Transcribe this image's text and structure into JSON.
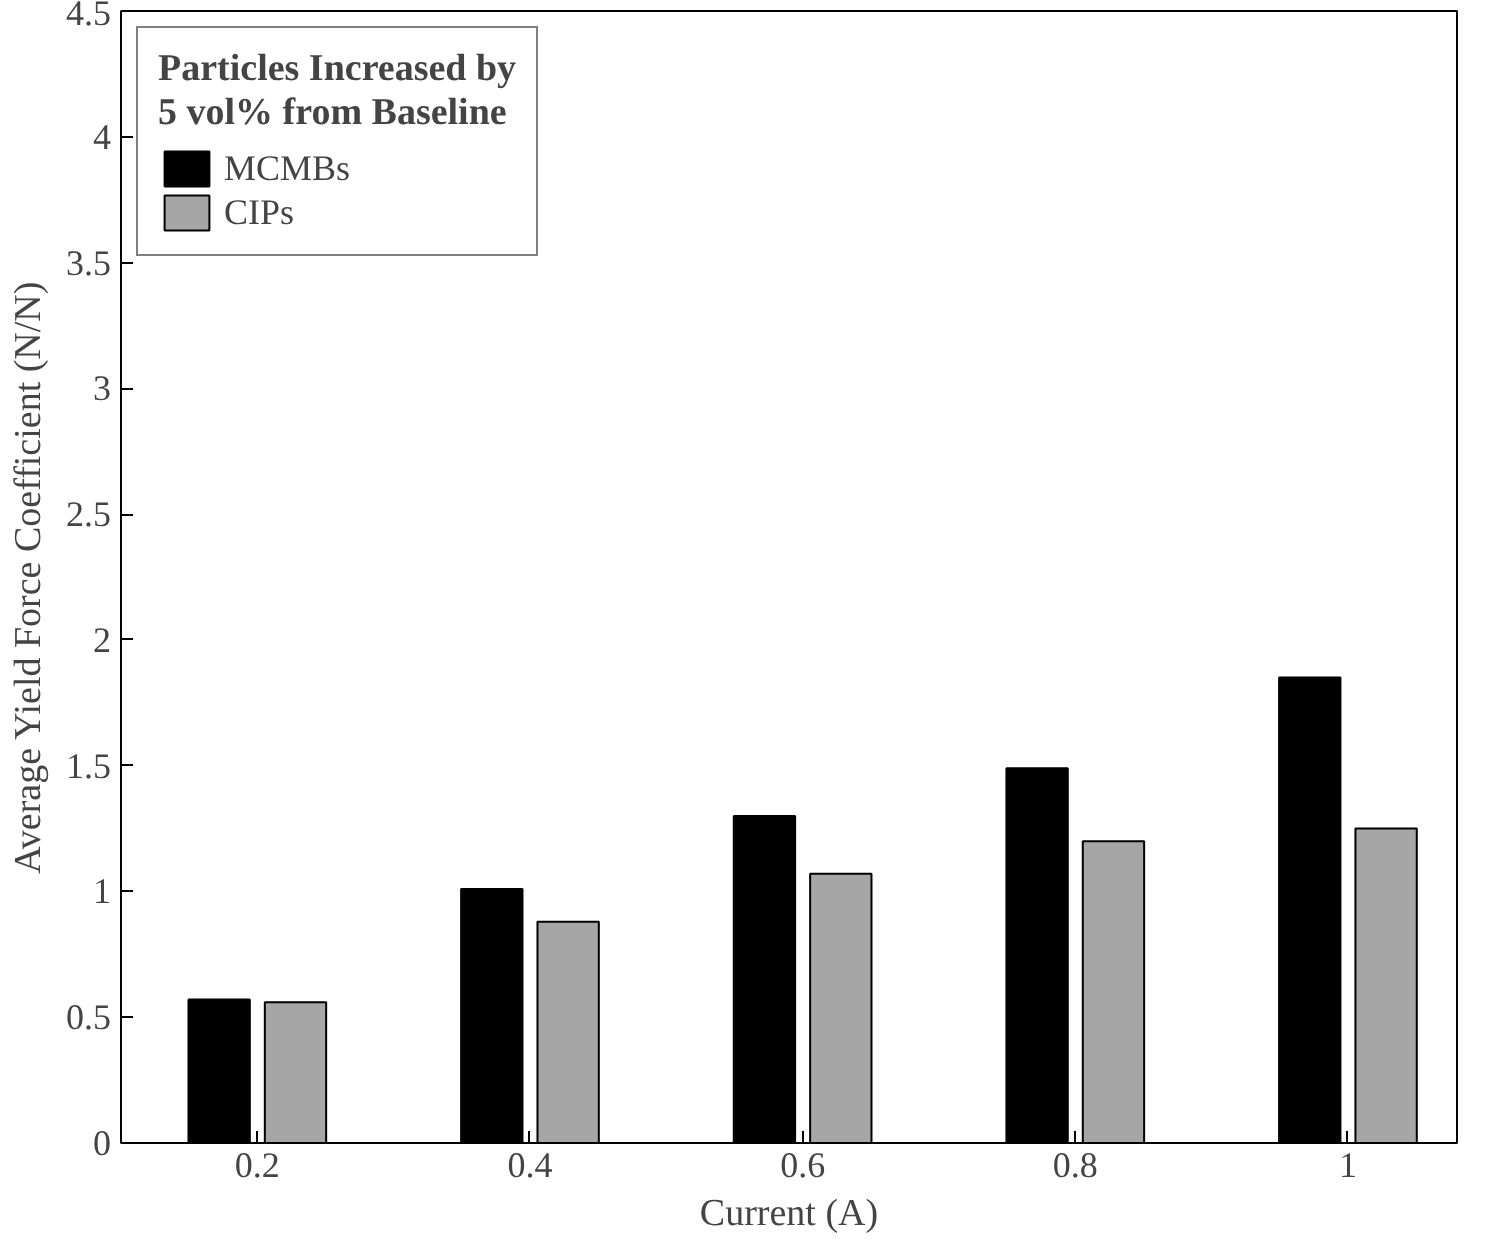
{
  "chart_data": {
    "type": "bar",
    "xlabel": "Current (A)",
    "ylabel": "Average Yield Force Coefficient (N/N)",
    "legend_title": "Particles Increased by\n5 vol% from Baseline",
    "x": [
      0.2,
      0.4,
      0.6,
      0.8,
      1
    ],
    "series": [
      {
        "name": "MCMBs",
        "color": "#000000",
        "values": [
          0.57,
          1.01,
          1.3,
          1.49,
          1.85
        ]
      },
      {
        "name": "CIPs",
        "color": "#a6a6a6",
        "values": [
          0.56,
          0.88,
          1.07,
          1.2,
          1.25
        ]
      }
    ],
    "xlim": [
      0.1,
      1.08
    ],
    "xticks": [
      0.2,
      0.4,
      0.6,
      0.8,
      1
    ],
    "ylim": [
      0,
      4.5
    ],
    "yticks": [
      0,
      0.5,
      1,
      1.5,
      2,
      2.5,
      3,
      3.5,
      4,
      4.5
    ],
    "grid": false,
    "legend": "top left"
  }
}
